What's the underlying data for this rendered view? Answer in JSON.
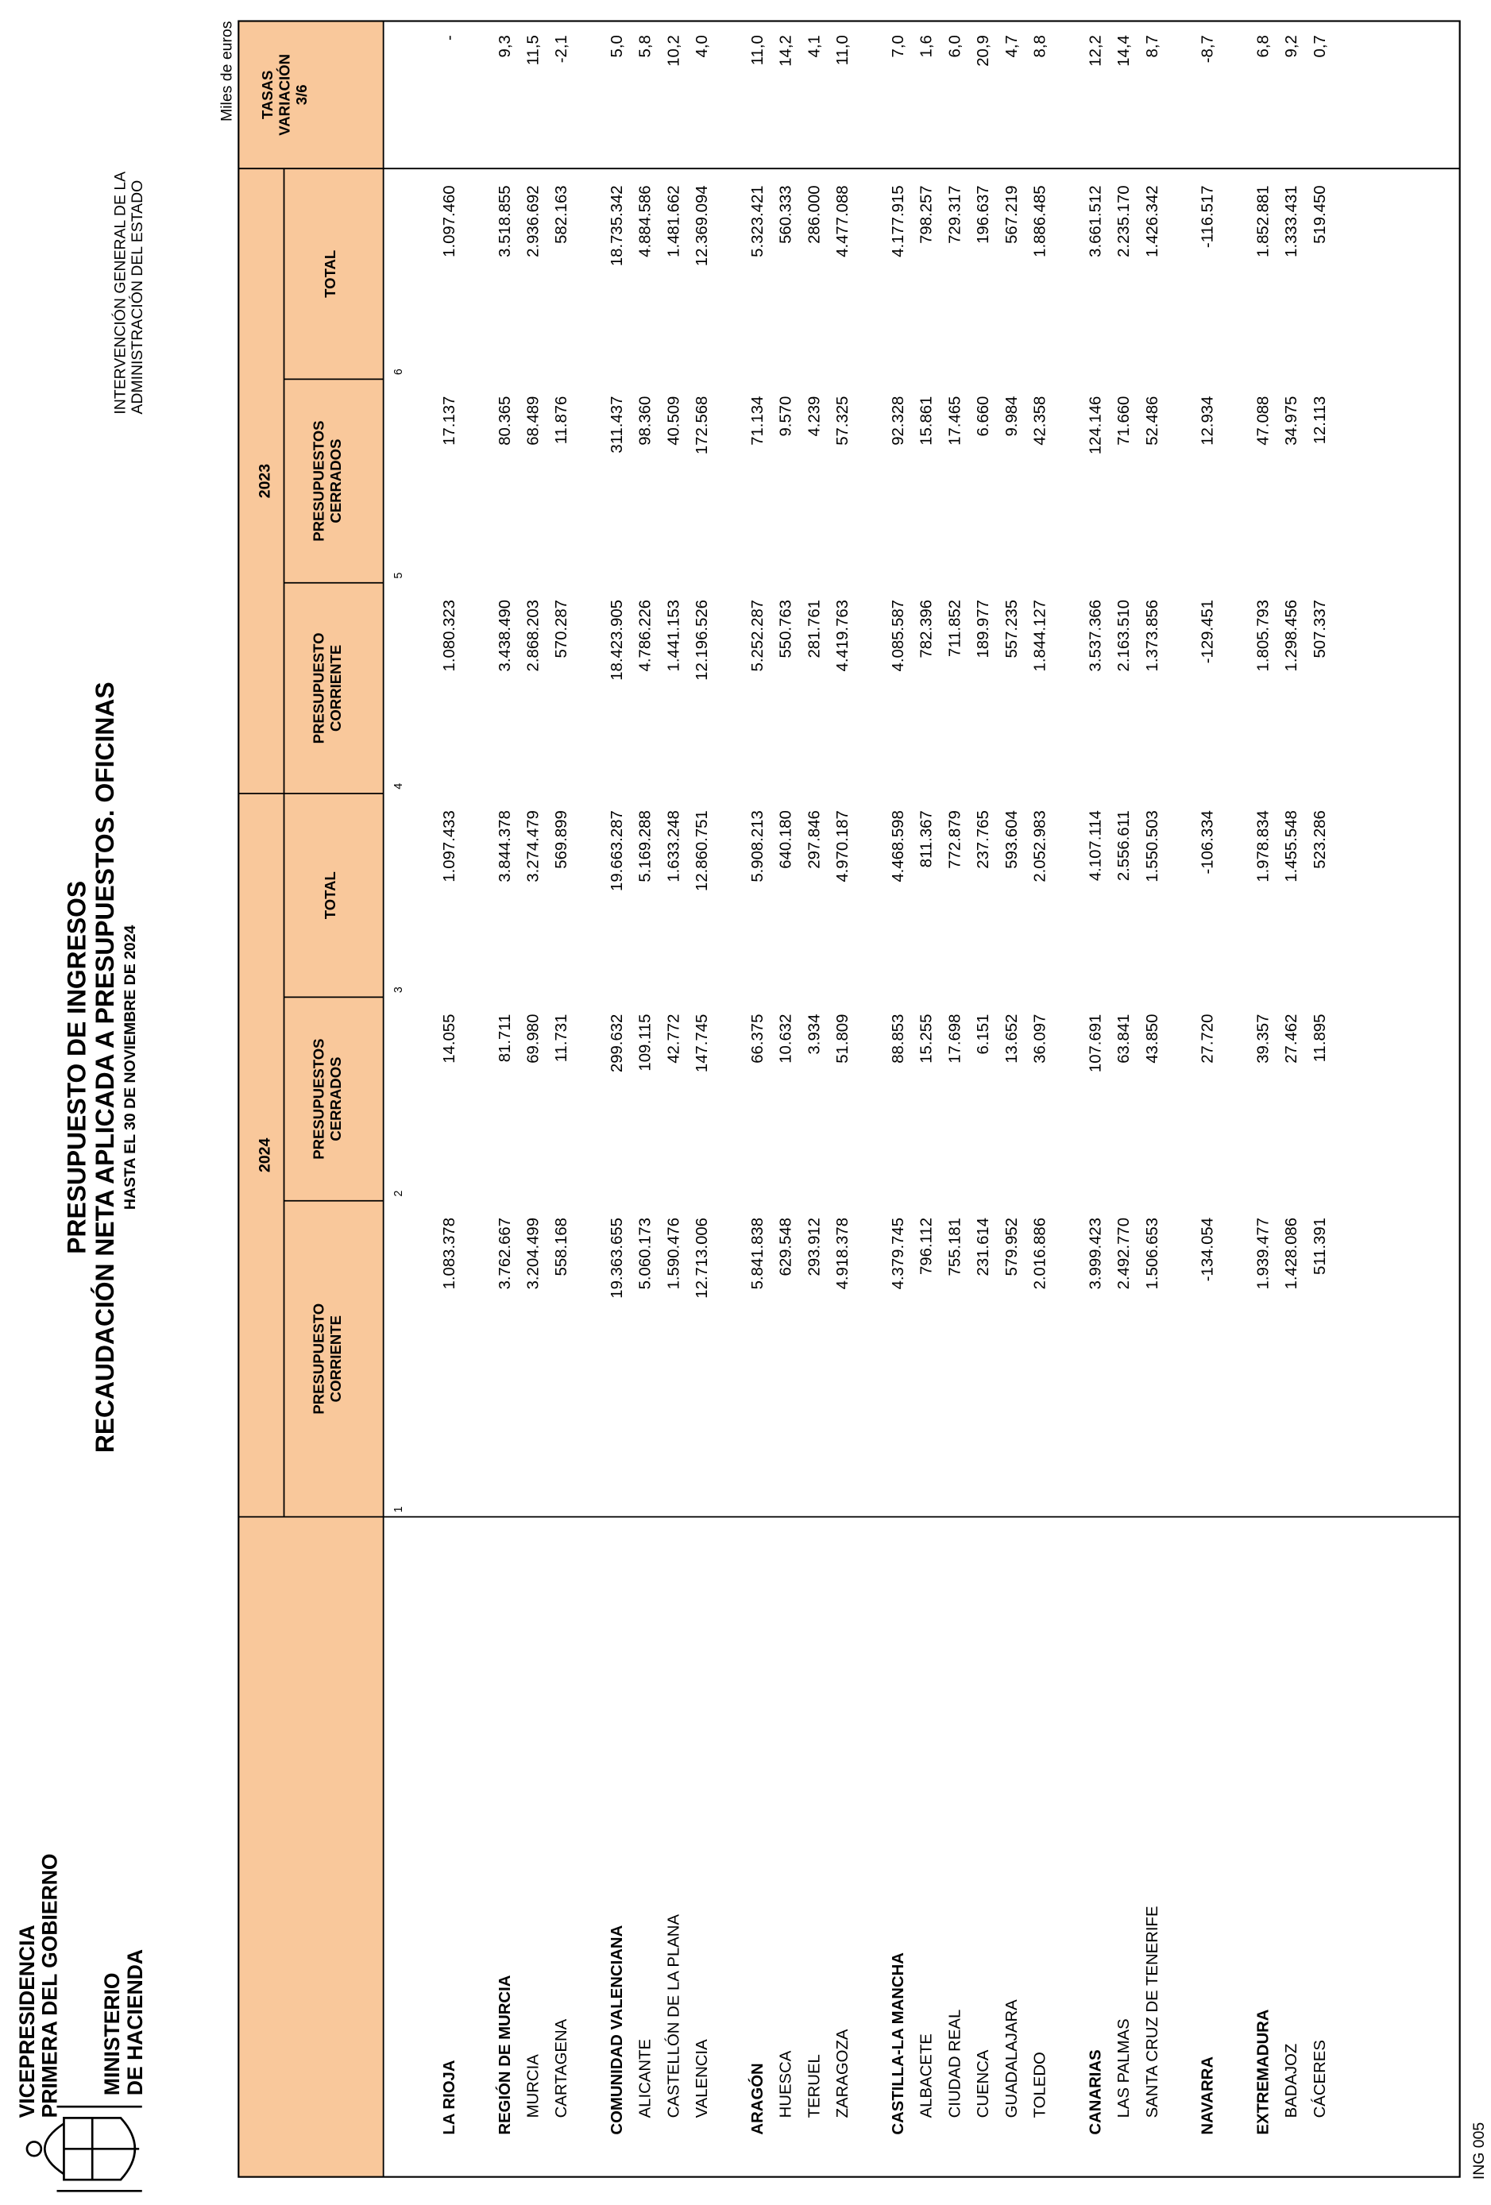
{
  "header": {
    "org_lines": [
      "VICEPRESIDENCIA",
      "PRIMERA DEL GOBIERNO"
    ],
    "ministry_lines": [
      "MINISTERIO",
      "DE HACIENDA"
    ],
    "right_lines": [
      "INTERVENCIÓN GENERAL DE LA",
      "ADMINISTRACIÓN DEL ESTADO"
    ],
    "title": "PRESUPUESTO DE INGRESOS",
    "subtitle": "RECAUDACIÓN NETA APLICADA A PRESUPUESTOS. OFICINAS",
    "date": "HASTA EL 30 DE NOVIEMBRE DE 2024",
    "units": "Miles de euros"
  },
  "table": {
    "year_headers": [
      "2024",
      "2023"
    ],
    "column_headers": [
      [
        "PRESUPUESTO",
        "CORRIENTE"
      ],
      [
        "PRESUPUESTOS",
        "CERRADOS"
      ],
      [
        "TOTAL"
      ],
      [
        "PRESUPUESTO",
        "CORRIENTE"
      ],
      [
        "PRESUPUESTOS",
        "CERRADOS"
      ],
      [
        "TOTAL"
      ],
      [
        "TASAS",
        "VARIACIÓN",
        "3/6"
      ]
    ],
    "column_numbers": [
      "1",
      "2",
      "3",
      "4",
      "5",
      "6"
    ],
    "groups": [
      {
        "name": "LA RIOJA",
        "values": [
          "1.083.378",
          "14.055",
          "1.097.433",
          "1.080.323",
          "17.137",
          "1.097.460",
          "-"
        ],
        "rows": []
      },
      {
        "name": "REGIÓN DE MURCIA",
        "values": [
          "3.762.667",
          "81.711",
          "3.844.378",
          "3.438.490",
          "80.365",
          "3.518.855",
          "9,3"
        ],
        "rows": [
          {
            "name": "MURCIA",
            "values": [
              "3.204.499",
              "69.980",
              "3.274.479",
              "2.868.203",
              "68.489",
              "2.936.692",
              "11,5"
            ]
          },
          {
            "name": "CARTAGENA",
            "values": [
              "558.168",
              "11.731",
              "569.899",
              "570.287",
              "11.876",
              "582.163",
              "-2,1"
            ]
          }
        ]
      },
      {
        "name": "COMUNIDAD VALENCIANA",
        "values": [
          "19.363.655",
          "299.632",
          "19.663.287",
          "18.423.905",
          "311.437",
          "18.735.342",
          "5,0"
        ],
        "rows": [
          {
            "name": "ALICANTE",
            "values": [
              "5.060.173",
              "109.115",
              "5.169.288",
              "4.786.226",
              "98.360",
              "4.884.586",
              "5,8"
            ]
          },
          {
            "name": "CASTELLÓN DE LA PLANA",
            "values": [
              "1.590.476",
              "42.772",
              "1.633.248",
              "1.441.153",
              "40.509",
              "1.481.662",
              "10,2"
            ]
          },
          {
            "name": "VALENCIA",
            "values": [
              "12.713.006",
              "147.745",
              "12.860.751",
              "12.196.526",
              "172.568",
              "12.369.094",
              "4,0"
            ]
          }
        ]
      },
      {
        "name": "ARAGÓN",
        "values": [
          "5.841.838",
          "66.375",
          "5.908.213",
          "5.252.287",
          "71.134",
          "5.323.421",
          "11,0"
        ],
        "rows": [
          {
            "name": "HUESCA",
            "values": [
              "629.548",
              "10.632",
              "640.180",
              "550.763",
              "9.570",
              "560.333",
              "14,2"
            ]
          },
          {
            "name": "TERUEL",
            "values": [
              "293.912",
              "3.934",
              "297.846",
              "281.761",
              "4.239",
              "286.000",
              "4,1"
            ]
          },
          {
            "name": "ZARAGOZA",
            "values": [
              "4.918.378",
              "51.809",
              "4.970.187",
              "4.419.763",
              "57.325",
              "4.477.088",
              "11,0"
            ]
          }
        ]
      },
      {
        "name": "CASTILLA-LA MANCHA",
        "values": [
          "4.379.745",
          "88.853",
          "4.468.598",
          "4.085.587",
          "92.328",
          "4.177.915",
          "7,0"
        ],
        "rows": [
          {
            "name": "ALBACETE",
            "values": [
              "796.112",
              "15.255",
              "811.367",
              "782.396",
              "15.861",
              "798.257",
              "1,6"
            ]
          },
          {
            "name": "CIUDAD REAL",
            "values": [
              "755.181",
              "17.698",
              "772.879",
              "711.852",
              "17.465",
              "729.317",
              "6,0"
            ]
          },
          {
            "name": "CUENCA",
            "values": [
              "231.614",
              "6.151",
              "237.765",
              "189.977",
              "6.660",
              "196.637",
              "20,9"
            ]
          },
          {
            "name": "GUADALAJARA",
            "values": [
              "579.952",
              "13.652",
              "593.604",
              "557.235",
              "9.984",
              "567.219",
              "4,7"
            ]
          },
          {
            "name": "TOLEDO",
            "values": [
              "2.016.886",
              "36.097",
              "2.052.983",
              "1.844.127",
              "42.358",
              "1.886.485",
              "8,8"
            ]
          }
        ]
      },
      {
        "name": "CANARIAS",
        "values": [
          "3.999.423",
          "107.691",
          "4.107.114",
          "3.537.366",
          "124.146",
          "3.661.512",
          "12,2"
        ],
        "rows": [
          {
            "name": "LAS PALMAS",
            "values": [
              "2.492.770",
              "63.841",
              "2.556.611",
              "2.163.510",
              "71.660",
              "2.235.170",
              "14,4"
            ]
          },
          {
            "name": "SANTA CRUZ DE TENERIFE",
            "values": [
              "1.506.653",
              "43.850",
              "1.550.503",
              "1.373.856",
              "52.486",
              "1.426.342",
              "8,7"
            ]
          }
        ]
      },
      {
        "name": "NAVARRA",
        "values": [
          "-134.054",
          "27.720",
          "-106.334",
          "-129.451",
          "12.934",
          "-116.517",
          "-8,7"
        ],
        "rows": []
      },
      {
        "name": "EXTREMADURA",
        "values": [
          "1.939.477",
          "39.357",
          "1.978.834",
          "1.805.793",
          "47.088",
          "1.852.881",
          "6,8"
        ],
        "rows": [
          {
            "name": "BADAJOZ",
            "values": [
              "1.428.086",
              "27.462",
              "1.455.548",
              "1.298.456",
              "34.975",
              "1.333.431",
              "9,2"
            ]
          },
          {
            "name": "CÁCERES",
            "values": [
              "511.391",
              "11.895",
              "523.286",
              "507.337",
              "12.113",
              "519.450",
              "0,7"
            ]
          }
        ]
      }
    ]
  },
  "footer": {
    "code": "ING 005"
  }
}
